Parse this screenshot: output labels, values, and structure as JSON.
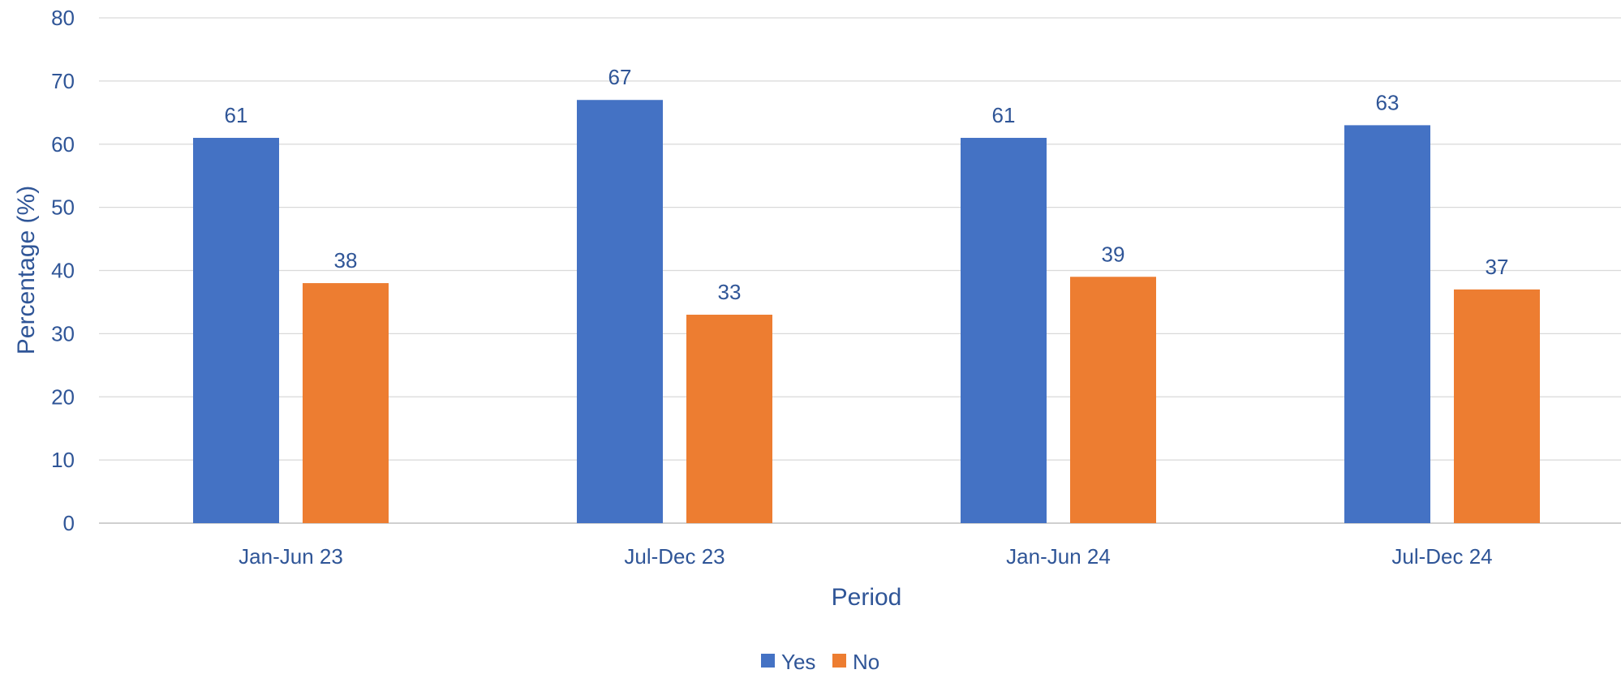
{
  "chart_data": {
    "type": "bar",
    "title": "",
    "xlabel": "Period",
    "ylabel": "Percentage (%)",
    "categories": [
      "Jan-Jun 23",
      "Jul-Dec 23",
      "Jan-Jun 24",
      "Jul-Dec 24"
    ],
    "series": [
      {
        "name": "Yes",
        "values": [
          61,
          67,
          61,
          63
        ],
        "color": "#4472C4"
      },
      {
        "name": "No",
        "values": [
          38,
          33,
          39,
          37
        ],
        "color": "#ED7D31"
      }
    ],
    "ylim": [
      0,
      80
    ],
    "yticks": [
      0,
      10,
      20,
      30,
      40,
      50,
      60,
      70,
      80
    ],
    "grid": true,
    "legend_position": "bottom-center",
    "data_labels": true
  },
  "colors": {
    "text": "#2F5597",
    "grid": "#D9D9D9",
    "axis": "#BFBFBF"
  }
}
